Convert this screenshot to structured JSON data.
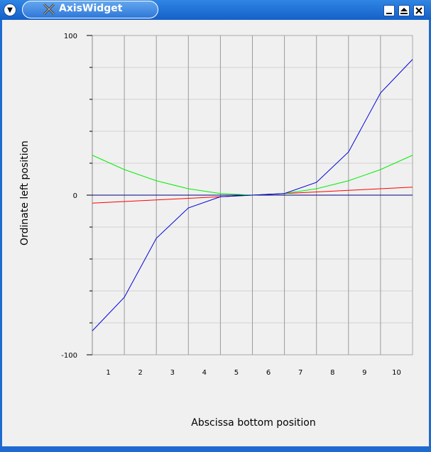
{
  "window": {
    "title": "AxisWidget"
  },
  "chart_data": {
    "type": "line",
    "xlabel": "Abscissa bottom position",
    "ylabel": "Ordinate left position",
    "ylim": [
      -100,
      100
    ],
    "yticks_labeled": [
      "100",
      "0",
      "-100"
    ],
    "categories": [
      "1",
      "2",
      "3",
      "4",
      "5",
      "6",
      "7",
      "8",
      "9",
      "10"
    ],
    "grid": "on",
    "x": [
      0.5,
      1.5,
      2.5,
      3.5,
      4.5,
      5.5,
      6.5,
      7.5,
      8.5,
      9.5,
      10.5
    ],
    "series": [
      {
        "color": "#000080",
        "values": [
          0,
          0,
          0,
          0,
          0,
          0,
          0,
          0,
          0,
          0,
          0
        ]
      },
      {
        "color": "#ff0000",
        "values": [
          -5.0,
          -4.0,
          -3.0,
          -2.0,
          -1.0,
          0,
          1.0,
          2.0,
          3.0,
          4.0,
          5.0
        ]
      },
      {
        "color": "#00ee00",
        "values": [
          25.0,
          16.0,
          9.0,
          4.0,
          1.0,
          0,
          1.0,
          4.0,
          9.0,
          16.0,
          25.0
        ]
      },
      {
        "color": "#0000dd",
        "values": [
          -85.0,
          -64.0,
          -27.0,
          -8.0,
          -1.0,
          0,
          1.0,
          8.0,
          27.0,
          64.0,
          85.0
        ]
      }
    ]
  }
}
